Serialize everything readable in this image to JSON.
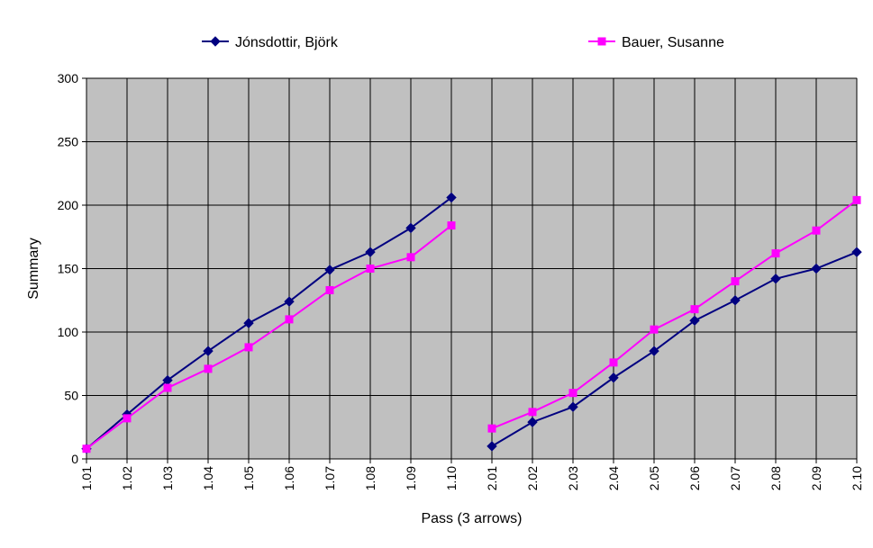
{
  "chart_data": {
    "type": "line",
    "title": "",
    "xlabel": "Pass (3 arrows)",
    "ylabel": "Summary",
    "ylim": [
      0,
      300
    ],
    "yticks": [
      0,
      50,
      100,
      150,
      200,
      250,
      300
    ],
    "grid": true,
    "plot_background": "#C0C0C0",
    "legend_position": "top",
    "categories": [
      "1.01",
      "1.02",
      "1.03",
      "1.04",
      "1.05",
      "1.06",
      "1.07",
      "1.08",
      "1.09",
      "1.10",
      "2.01",
      "2.02",
      "2.03",
      "2.04",
      "2.05",
      "2.06",
      "2.07",
      "2.08",
      "2.09",
      "2.10"
    ],
    "series": [
      {
        "name": "Jónsdottir, Björk",
        "color": "#000080",
        "marker": "diamond",
        "values": [
          8,
          35,
          62,
          85,
          107,
          124,
          149,
          163,
          182,
          206,
          10,
          29,
          41,
          64,
          85,
          109,
          125,
          142,
          150,
          163
        ]
      },
      {
        "name": "Bauer, Susanne",
        "color": "#FF00FF",
        "marker": "square",
        "values": [
          8,
          32,
          56,
          71,
          88,
          110,
          133,
          150,
          159,
          184,
          24,
          37,
          52,
          76,
          102,
          118,
          140,
          162,
          180,
          204
        ]
      }
    ]
  }
}
